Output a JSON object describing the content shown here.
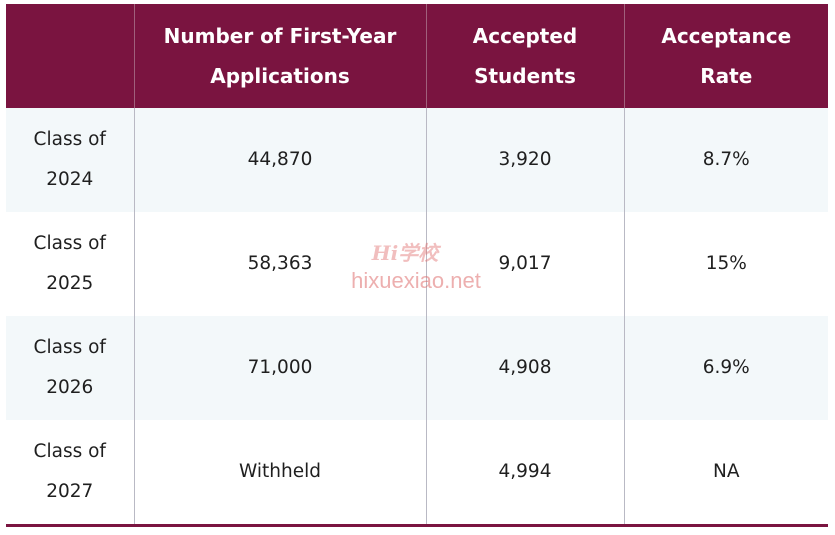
{
  "table": {
    "headers": [
      "",
      "Number of First-Year Applications",
      "Accepted Students",
      "Acceptance Rate"
    ],
    "rows": [
      {
        "class": "Class of 2024",
        "applications": "44,870",
        "accepted": "3,920",
        "rate": "8.7%"
      },
      {
        "class": "Class of 2025",
        "applications": "58,363",
        "accepted": "9,017",
        "rate": "15%"
      },
      {
        "class": "Class of 2026",
        "applications": "71,000",
        "accepted": "4,908",
        "rate": "6.9%"
      },
      {
        "class": "Class of 2027",
        "applications": "Withheld",
        "accepted": "4,994",
        "rate": "NA"
      }
    ]
  },
  "watermark": {
    "logo_text": "Hi学校",
    "url": "hixuexiao.net"
  },
  "colors": {
    "header_bg": "#7a1440",
    "row_alt_bg": "#f3f8fa",
    "watermark": "#e06e6e"
  }
}
